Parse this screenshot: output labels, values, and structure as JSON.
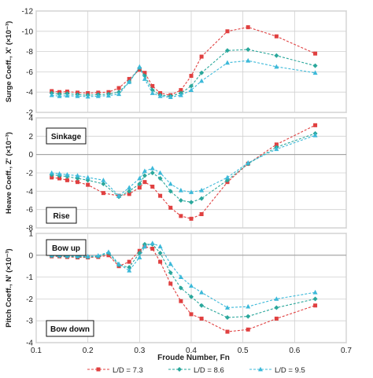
{
  "chart_data": [
    {
      "type": "line",
      "ylabel": "Surge Coeff., X' (×10⁻³)",
      "ylim": [
        -2,
        -12
      ],
      "y_reversed": true,
      "yticks": [
        -12,
        -10,
        -8,
        -6,
        -4,
        -2
      ],
      "xlim": [
        0.1,
        0.7
      ],
      "grid": true,
      "series": [
        {
          "name": "L/D = 7.3",
          "color": "#e04040",
          "marker": "square",
          "x": [
            0.13,
            0.145,
            0.16,
            0.18,
            0.2,
            0.22,
            0.24,
            0.26,
            0.28,
            0.3,
            0.31,
            0.325,
            0.34,
            0.36,
            0.38,
            0.4,
            0.42,
            0.47,
            0.51,
            0.565,
            0.64
          ],
          "y": [
            -4.1,
            -4.0,
            -4.05,
            -3.95,
            -3.9,
            -3.95,
            -4.0,
            -4.4,
            -5.3,
            -6.2,
            -5.9,
            -4.6,
            -3.9,
            -3.7,
            -4.2,
            -5.6,
            -7.5,
            -10.0,
            -10.4,
            -9.5,
            -7.8
          ]
        },
        {
          "name": "L/D = 8.6",
          "color": "#2aa79b",
          "marker": "diamond",
          "x": [
            0.13,
            0.145,
            0.16,
            0.18,
            0.2,
            0.22,
            0.24,
            0.26,
            0.28,
            0.3,
            0.31,
            0.325,
            0.34,
            0.36,
            0.38,
            0.4,
            0.42,
            0.47,
            0.51,
            0.565,
            0.64
          ],
          "y": [
            -3.9,
            -3.8,
            -3.85,
            -3.75,
            -3.7,
            -3.75,
            -3.8,
            -4.0,
            -5.0,
            -6.4,
            -5.6,
            -4.2,
            -3.7,
            -3.6,
            -3.9,
            -4.6,
            -5.9,
            -8.1,
            -8.2,
            -7.6,
            -6.6
          ]
        },
        {
          "name": "L/D = 9.5",
          "color": "#3cb9d9",
          "marker": "triangle",
          "x": [
            0.13,
            0.145,
            0.16,
            0.18,
            0.2,
            0.22,
            0.24,
            0.26,
            0.28,
            0.3,
            0.31,
            0.325,
            0.34,
            0.36,
            0.38,
            0.4,
            0.42,
            0.47,
            0.51,
            0.565,
            0.64
          ],
          "y": [
            -3.7,
            -3.6,
            -3.65,
            -3.6,
            -3.55,
            -3.6,
            -3.65,
            -3.8,
            -5.0,
            -6.5,
            -5.3,
            -3.9,
            -3.6,
            -3.5,
            -3.7,
            -4.2,
            -5.1,
            -6.9,
            -7.1,
            -6.5,
            -5.9
          ]
        }
      ]
    },
    {
      "type": "line",
      "ylabel": "Heave Coeff., Z' (×10⁻³)",
      "ylim": [
        -8,
        4
      ],
      "yticks": [
        -8,
        -6,
        -4,
        -2,
        0,
        2,
        4
      ],
      "xlim": [
        0.1,
        0.7
      ],
      "grid": true,
      "annotations": [
        "Sinkage",
        "Rise"
      ],
      "series": [
        {
          "name": "L/D = 7.3",
          "color": "#e04040",
          "marker": "square",
          "x": [
            0.13,
            0.145,
            0.16,
            0.18,
            0.2,
            0.23,
            0.26,
            0.28,
            0.3,
            0.31,
            0.325,
            0.34,
            0.36,
            0.38,
            0.4,
            0.42,
            0.47,
            0.51,
            0.565,
            0.64
          ],
          "y": [
            -2.5,
            -2.6,
            -2.8,
            -3.0,
            -3.3,
            -4.2,
            -4.5,
            -4.3,
            -3.6,
            -3.0,
            -3.5,
            -4.5,
            -5.8,
            -6.7,
            -7.0,
            -6.5,
            -3.0,
            -1.0,
            1.1,
            3.2
          ]
        },
        {
          "name": "L/D = 8.6",
          "color": "#2aa79b",
          "marker": "diamond",
          "x": [
            0.13,
            0.145,
            0.16,
            0.18,
            0.2,
            0.23,
            0.26,
            0.28,
            0.3,
            0.31,
            0.325,
            0.34,
            0.36,
            0.38,
            0.4,
            0.42,
            0.47,
            0.51,
            0.565,
            0.64
          ],
          "y": [
            -2.2,
            -2.3,
            -2.4,
            -2.6,
            -2.8,
            -3.2,
            -4.6,
            -4.0,
            -3.2,
            -2.3,
            -2.0,
            -2.6,
            -4.0,
            -5.0,
            -5.2,
            -4.8,
            -2.8,
            -1.0,
            0.8,
            2.3
          ]
        },
        {
          "name": "L/D = 9.5",
          "color": "#3cb9d9",
          "marker": "triangle",
          "x": [
            0.13,
            0.145,
            0.16,
            0.18,
            0.2,
            0.23,
            0.26,
            0.28,
            0.3,
            0.31,
            0.325,
            0.34,
            0.36,
            0.38,
            0.4,
            0.42,
            0.47,
            0.51,
            0.565,
            0.64
          ],
          "y": [
            -2.0,
            -2.1,
            -2.2,
            -2.3,
            -2.5,
            -2.8,
            -4.5,
            -3.6,
            -2.6,
            -1.8,
            -1.5,
            -2.0,
            -3.2,
            -3.9,
            -4.1,
            -3.9,
            -2.5,
            -0.9,
            0.6,
            2.1
          ]
        }
      ]
    },
    {
      "type": "line",
      "ylabel": "Pitch Coeff., N' (×10⁻³)",
      "ylim": [
        -4,
        1
      ],
      "yticks": [
        -4,
        -3,
        -2,
        -1,
        0,
        1
      ],
      "xlim": [
        0.1,
        0.7
      ],
      "xticks": [
        0.1,
        0.2,
        0.3,
        0.4,
        0.5,
        0.6,
        0.7
      ],
      "xlabel": "Froude Number, Fn",
      "grid": true,
      "annotations": [
        "Bow up",
        "Bow down"
      ],
      "series": [
        {
          "name": "L/D = 7.3",
          "color": "#e04040",
          "marker": "square",
          "x": [
            0.13,
            0.145,
            0.16,
            0.18,
            0.2,
            0.22,
            0.24,
            0.26,
            0.28,
            0.3,
            0.31,
            0.325,
            0.34,
            0.36,
            0.38,
            0.4,
            0.42,
            0.47,
            0.51,
            0.565,
            0.64
          ],
          "y": [
            -0.05,
            -0.05,
            -0.08,
            -0.1,
            -0.1,
            -0.08,
            0.0,
            -0.5,
            -0.3,
            0.2,
            0.4,
            0.3,
            -0.3,
            -1.3,
            -2.1,
            -2.7,
            -2.9,
            -3.5,
            -3.4,
            -2.9,
            -2.3
          ]
        },
        {
          "name": "L/D = 8.6",
          "color": "#2aa79b",
          "marker": "diamond",
          "x": [
            0.13,
            0.145,
            0.16,
            0.18,
            0.2,
            0.22,
            0.24,
            0.26,
            0.28,
            0.3,
            0.31,
            0.325,
            0.34,
            0.36,
            0.38,
            0.4,
            0.42,
            0.47,
            0.51,
            0.565,
            0.64
          ],
          "y": [
            -0.03,
            -0.03,
            -0.05,
            -0.07,
            -0.08,
            -0.05,
            0.1,
            -0.45,
            -0.55,
            0.1,
            0.5,
            0.5,
            0.1,
            -0.8,
            -1.5,
            -1.9,
            -2.3,
            -2.85,
            -2.8,
            -2.4,
            -2.0
          ]
        },
        {
          "name": "L/D = 9.5",
          "color": "#3cb9d9",
          "marker": "triangle",
          "x": [
            0.13,
            0.145,
            0.16,
            0.18,
            0.2,
            0.22,
            0.24,
            0.26,
            0.28,
            0.3,
            0.31,
            0.325,
            0.34,
            0.36,
            0.38,
            0.4,
            0.42,
            0.47,
            0.51,
            0.565,
            0.64
          ],
          "y": [
            0.0,
            0.0,
            -0.02,
            -0.04,
            -0.05,
            -0.02,
            0.15,
            -0.4,
            -0.7,
            -0.1,
            0.4,
            0.55,
            0.4,
            -0.4,
            -1.0,
            -1.4,
            -1.7,
            -2.4,
            -2.35,
            -2.0,
            -1.7
          ]
        }
      ]
    }
  ],
  "legend": {
    "position": "bottom",
    "entries": [
      "L/D = 7.3",
      "L/D = 8.6",
      "L/D = 9.5"
    ]
  }
}
